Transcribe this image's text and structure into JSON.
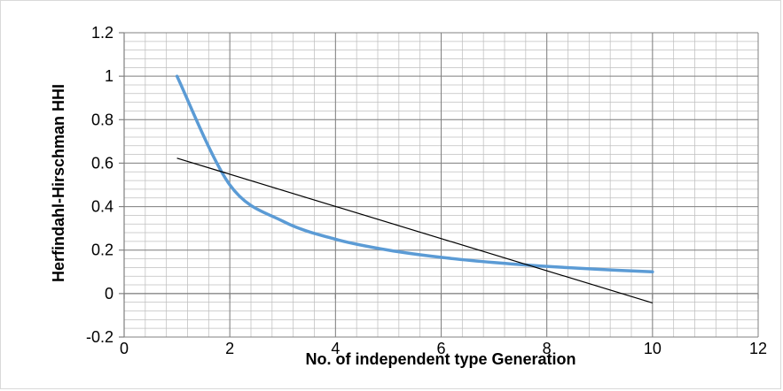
{
  "chart_data": {
    "type": "scatter",
    "title": "",
    "xlabel": "No. of independent type Generation",
    "ylabel": "Herfindahl-Hirschman HHI",
    "xlim": [
      0,
      12
    ],
    "ylim": [
      -0.2,
      1.2
    ],
    "x_ticks": [
      0,
      2,
      4,
      6,
      8,
      10,
      12
    ],
    "x_tick_labels": [
      "0",
      "2",
      "4",
      "6",
      "8",
      "10",
      "12"
    ],
    "y_ticks": [
      -0.2,
      0,
      0.2,
      0.4,
      0.6,
      0.8,
      1,
      1.2
    ],
    "y_tick_labels": [
      "-0.2",
      "0",
      "0.2",
      "0.4",
      "0.6",
      "0.8",
      "1",
      "1.2"
    ],
    "x_minor_step": 0.4,
    "y_minor_step": 0.04,
    "grid": true,
    "legend": "none",
    "series": [
      {
        "style": "smooth-line",
        "color": "#5b9bd5",
        "x": [
          1,
          2,
          3,
          4,
          5,
          6,
          7,
          8,
          9,
          10
        ],
        "y": [
          1.0,
          0.5,
          0.3333,
          0.25,
          0.2,
          0.1667,
          0.1429,
          0.125,
          0.1111,
          0.1
        ]
      },
      {
        "style": "trendline-linear",
        "color": "#000000",
        "x": [
          1,
          10
        ],
        "y": [
          0.623,
          -0.043
        ]
      }
    ],
    "colors": {
      "major_grid": "#808080",
      "minor_grid": "#bfbfbf",
      "axis": "#808080",
      "border": "#d9d9d9"
    }
  }
}
